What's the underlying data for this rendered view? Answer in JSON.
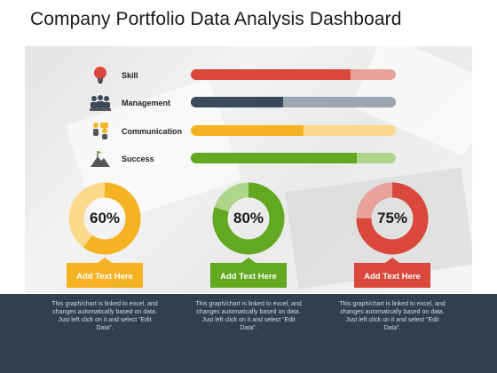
{
  "page": {
    "title": "Company Portfolio Data Analysis Dashboard"
  },
  "chart_data": [
    {
      "type": "bar",
      "orientation": "horizontal",
      "categories": [
        "Skill",
        "Management",
        "Communication",
        "Success"
      ],
      "values": [
        78,
        45,
        55,
        81
      ],
      "xlim": [
        0,
        100
      ],
      "colors": [
        "#d9483b",
        "#3a4a5b",
        "#f5b324",
        "#62a820"
      ],
      "track_colors": [
        "#e8a29b",
        "#9ca6b0",
        "#fbd98d",
        "#aed68a"
      ],
      "icons": [
        "lightbulb-icon",
        "team-icon",
        "communication-icon",
        "mountain-flag-icon"
      ]
    },
    {
      "type": "pie",
      "style": "donut",
      "values": [
        60,
        80,
        75
      ],
      "value_labels": [
        "60%",
        "80%",
        "75%"
      ],
      "colors": [
        "#f5b324",
        "#62a820",
        "#d9483b"
      ],
      "remainder_colors": [
        "#fbd98d",
        "#aed68a",
        "#e8a29b"
      ]
    }
  ],
  "tags": [
    "Add Text Here",
    "Add Text Here",
    "Add Text Here"
  ],
  "tag_colors": [
    "#f5b324",
    "#62a820",
    "#d9483b"
  ],
  "notes": [
    "This graph/chart is linked to excel, and changes automatically based on data. Just left click on it and select “Edit Data”.",
    "This graph/chart is linked to excel, and changes automatically based on data. Just left click on it and select “Edit Data”.",
    "This graph/chart is linked to excel, and changes automatically based on data. Just left click on it and select “Edit Data”."
  ]
}
